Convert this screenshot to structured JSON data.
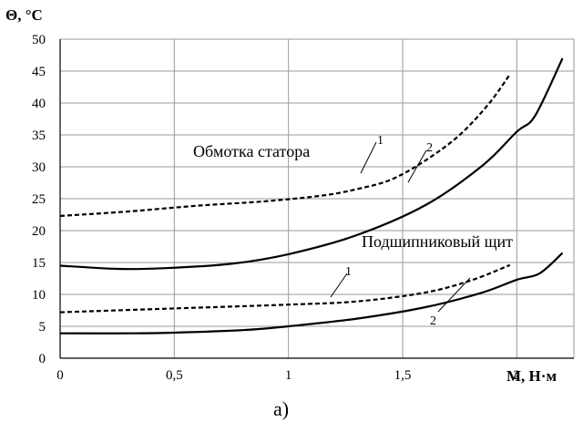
{
  "chart_data": {
    "type": "line",
    "ylabel": "Θ, °C",
    "xlabel": "M, Н·м",
    "caption": "а)",
    "xlim": [
      0,
      2.25
    ],
    "ylim": [
      0,
      50
    ],
    "x_ticks": [
      {
        "value": 0,
        "label": "0"
      },
      {
        "value": 0.5,
        "label": "0,5"
      },
      {
        "value": 1,
        "label": "1"
      },
      {
        "value": 1.5,
        "label": "1,5"
      },
      {
        "value": 2,
        "label": "2"
      }
    ],
    "y_ticks": [
      0,
      5,
      10,
      15,
      20,
      25,
      30,
      35,
      40,
      45,
      50
    ],
    "grid": true,
    "series": [
      {
        "name": "1",
        "group": "Обмотка статора",
        "style": "dashed",
        "x": [
          0,
          0.3,
          0.6,
          0.9,
          1.15,
          1.3,
          1.45,
          1.6,
          1.75,
          1.88,
          1.97
        ],
        "y": [
          22.3,
          23.0,
          23.9,
          24.6,
          25.5,
          26.5,
          28.0,
          31.0,
          35.0,
          40.0,
          44.5
        ]
      },
      {
        "name": "2",
        "group": "Обмотка статора",
        "style": "solid",
        "x": [
          0,
          0.25,
          0.45,
          0.75,
          1.0,
          1.3,
          1.6,
          1.85,
          2.0,
          2.08,
          2.2
        ],
        "y": [
          14.5,
          14.0,
          14.1,
          14.8,
          16.3,
          19.3,
          24.0,
          30.2,
          35.5,
          38.0,
          47.0
        ]
      },
      {
        "name": "1",
        "group": "Подшипниковый щит",
        "style": "dashed",
        "x": [
          0,
          0.5,
          1.0,
          1.3,
          1.6,
          1.8,
          1.97
        ],
        "y": [
          7.2,
          7.8,
          8.4,
          8.9,
          10.3,
          12.2,
          14.6
        ]
      },
      {
        "name": "2",
        "group": "Подшипниковый щит",
        "style": "solid",
        "x": [
          0,
          0.3,
          0.5,
          0.8,
          1.0,
          1.3,
          1.6,
          1.85,
          2.0,
          2.1,
          2.2
        ],
        "y": [
          3.9,
          3.9,
          4.0,
          4.4,
          5.0,
          6.2,
          8.0,
          10.3,
          12.3,
          13.3,
          16.5
        ]
      }
    ],
    "annotations": [
      {
        "text": "Обмотка статора"
      },
      {
        "text": "Подшипниковый щит"
      },
      {
        "text": "1",
        "refers_to": "Обмотка статора, 1"
      },
      {
        "text": "2",
        "refers_to": "Обмотка статора, 2"
      },
      {
        "text": "1",
        "refers_to": "Подшипниковый щит, 1"
      },
      {
        "text": "2",
        "refers_to": "Подшипниковый щит, 2"
      }
    ]
  }
}
